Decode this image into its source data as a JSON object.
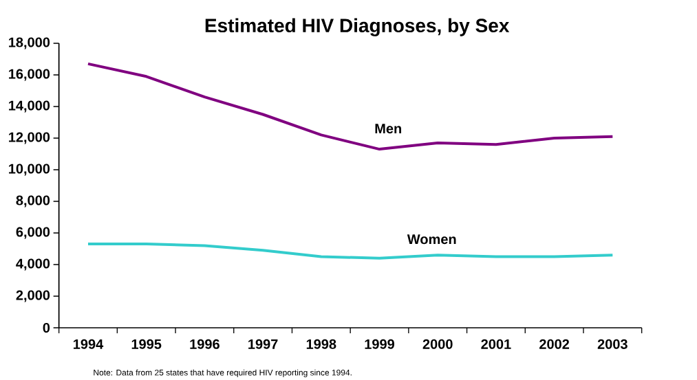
{
  "chart_data": {
    "type": "line",
    "title": "Estimated HIV Diagnoses, by Sex",
    "categories": [
      "1994",
      "1995",
      "1996",
      "1997",
      "1998",
      "1999",
      "2000",
      "2001",
      "2002",
      "2003"
    ],
    "series": [
      {
        "name": "Men",
        "color": "#800080",
        "values": [
          16700,
          15900,
          14600,
          13500,
          12200,
          11300,
          11700,
          11600,
          12000,
          12100
        ]
      },
      {
        "name": "Women",
        "color": "#33cccc",
        "values": [
          5300,
          5300,
          5200,
          4900,
          4500,
          4400,
          4600,
          4500,
          4500,
          4600
        ]
      }
    ],
    "ylim": [
      0,
      18000
    ],
    "yticks": [
      {
        "value": 0,
        "label": "0"
      },
      {
        "value": 2000,
        "label": "2,000"
      },
      {
        "value": 4000,
        "label": "4,000"
      },
      {
        "value": 6000,
        "label": "6,000"
      },
      {
        "value": 8000,
        "label": "8,000"
      },
      {
        "value": 10000,
        "label": "10,000"
      },
      {
        "value": 12000,
        "label": "12,000"
      },
      {
        "value": 14000,
        "label": "14,000"
      },
      {
        "value": 16000,
        "label": "16,000"
      },
      {
        "value": 18000,
        "label": "18,000"
      }
    ],
    "annotations": [
      "Note:  Data from 25 states that have required HIV reporting since 1994."
    ]
  }
}
